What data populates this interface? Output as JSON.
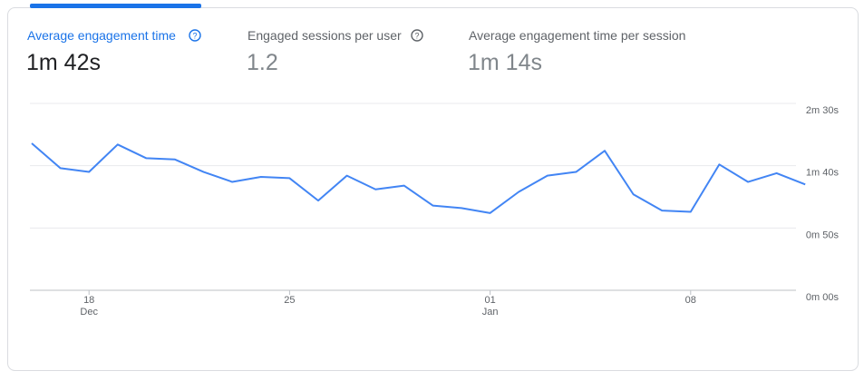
{
  "tabs": [
    {
      "title": "Average engagement time",
      "value": "1m 42s"
    },
    {
      "title": "Engaged sessions per user",
      "value": "1.2"
    },
    {
      "title": "Average engagement time per session",
      "value": "1m 14s"
    }
  ],
  "chart_data": {
    "type": "line",
    "categories": [
      null,
      null,
      "18",
      null,
      null,
      null,
      null,
      null,
      null,
      "25",
      null,
      null,
      null,
      null,
      null,
      null,
      "01",
      null,
      null,
      null,
      null,
      null,
      null,
      "08",
      null,
      null,
      null,
      null
    ],
    "month_labels": [
      null,
      null,
      "Dec",
      null,
      null,
      null,
      null,
      null,
      null,
      null,
      null,
      null,
      null,
      null,
      null,
      null,
      "Jan",
      null,
      null,
      null,
      null,
      null,
      null,
      null,
      null,
      null,
      null,
      null
    ],
    "series": [
      {
        "color": "#4285f4",
        "values": [
          118,
          98,
          95,
          117,
          106,
          105,
          95,
          87,
          91,
          90,
          72,
          92,
          81,
          84,
          68,
          66,
          62,
          79,
          92,
          95,
          112,
          77,
          64,
          63,
          101,
          87,
          94,
          85
        ]
      }
    ],
    "ylim": [
      0,
      150
    ],
    "yticks": [
      {
        "value": 0,
        "label": "0m 00s"
      },
      {
        "value": 50,
        "label": "0m 50s"
      },
      {
        "value": 100,
        "label": "1m 40s"
      },
      {
        "value": 150,
        "label": "2m 30s"
      }
    ],
    "grid": true
  }
}
